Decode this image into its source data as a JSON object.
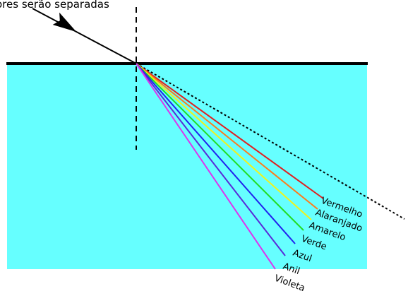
{
  "caption": "ores serão separadas",
  "colors": {
    "background": "#ffffff",
    "medium": "#66ffff",
    "surface": "#000000",
    "normal": "#000000",
    "incident": "#000000",
    "undeviated": "#000000"
  },
  "rays": [
    {
      "label": "Vermelho",
      "color": "#e02020"
    },
    {
      "label": "Alaranjado",
      "color": "#ff7a1a"
    },
    {
      "label": "Amarelo",
      "color": "#f2f21a"
    },
    {
      "label": "Verde",
      "color": "#22dd22"
    },
    {
      "label": "Azul",
      "color": "#2222ee"
    },
    {
      "label": "Anil",
      "color": "#5a2ad8"
    },
    {
      "label": "Violeta",
      "color": "#dd33ee"
    }
  ]
}
